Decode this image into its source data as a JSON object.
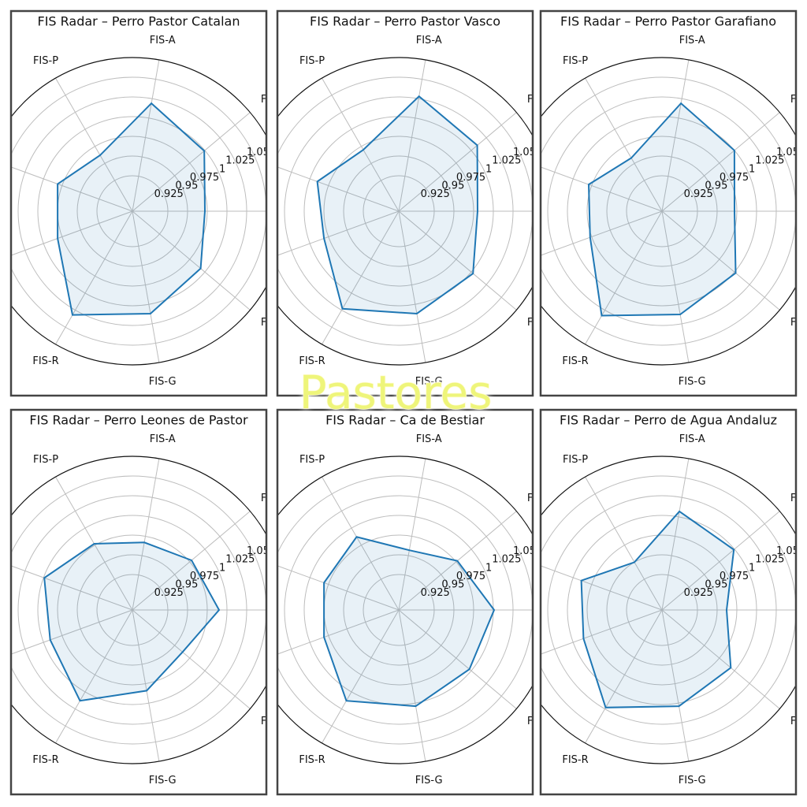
{
  "chart_data": [
    {
      "type": "radar",
      "title": "FIS Radar – Perro Pastor Catalan",
      "categories": [
        null,
        "FI",
        "FIS-A",
        "FIS-P",
        null,
        null,
        "FIS-R",
        "FIS-G",
        "FI"
      ],
      "values": [
        0.972,
        0.999,
        1.019,
        0.962,
        0.981,
        0.981,
        1.032,
        1.012,
        0.993
      ],
      "color": "#1f77b4",
      "rlim": [
        0.88,
        1.075
      ],
      "rticks": [
        0.925,
        0.95,
        0.975,
        1.0,
        1.025,
        1.05
      ],
      "grid": true
    },
    {
      "type": "radar",
      "title": "FIS Radar – Perro Pastor Vasco",
      "categories": [
        null,
        "FI",
        "FIS-A",
        "FIS-P",
        null,
        null,
        "FIS-R",
        "FIS-G",
        "FI"
      ],
      "values": [
        0.98,
        1.01,
        1.028,
        0.97,
        0.99,
        0.981,
        1.023,
        1.012,
        1.003
      ],
      "color": "#1f77b4",
      "rlim": [
        0.88,
        1.075
      ],
      "rticks": [
        0.925,
        0.95,
        0.975,
        1.0,
        1.025,
        1.05
      ],
      "grid": true
    },
    {
      "type": "radar",
      "title": "FIS Radar – Perro Pastor Garafiano",
      "categories": [
        null,
        "FI",
        "FIS-A",
        "FIS-P",
        null,
        null,
        "FIS-R",
        "FIS-G",
        "FI"
      ],
      "values": [
        0.972,
        1.0,
        1.019,
        0.958,
        0.979,
        0.977,
        1.033,
        1.013,
        1.002
      ],
      "color": "#1f77b4",
      "rlim": [
        0.88,
        1.075
      ],
      "rticks": [
        0.925,
        0.95,
        0.975,
        1.0,
        1.025,
        1.05
      ],
      "grid": true
    },
    {
      "type": "radar",
      "title": "FIS Radar – Perro Leones de Pastor",
      "categories": [
        null,
        "FI",
        "FIS-A",
        "FIS-P",
        null,
        null,
        "FIS-R",
        "FIS-G",
        "FI"
      ],
      "values": [
        0.99,
        0.978,
        0.967,
        0.977,
        0.999,
        0.991,
        1.013,
        0.984,
        0.963
      ],
      "color": "#1f77b4",
      "rlim": [
        0.88,
        1.075
      ],
      "rticks": [
        0.925,
        0.95,
        0.975,
        1.0,
        1.025,
        1.05
      ],
      "grid": true
    },
    {
      "type": "radar",
      "title": "FIS Radar – Ca de Bestiar",
      "categories": [
        null,
        "FI",
        "FIS-A",
        "FIS-P",
        null,
        null,
        "FIS-R",
        "FIS-G",
        "FI"
      ],
      "values": [
        1.001,
        0.977,
        0.957,
        0.987,
        0.981,
        0.981,
        1.013,
        1.004,
        0.997
      ],
      "color": "#1f77b4",
      "rlim": [
        0.88,
        1.075
      ],
      "rticks": [
        0.925,
        0.95,
        0.975,
        1.0,
        1.025,
        1.05
      ],
      "grid": true
    },
    {
      "type": "radar",
      "title": "FIS Radar – Perro de Agua Andaluz",
      "categories": [
        null,
        "FI",
        "FIS-A",
        "FIS-P",
        null,
        null,
        "FIS-R",
        "FIS-G",
        "FI"
      ],
      "values": [
        0.962,
        0.999,
        1.007,
        0.95,
        0.989,
        0.986,
        1.023,
        1.004,
        0.994
      ],
      "color": "#1f77b4",
      "rlim": [
        0.88,
        1.075
      ],
      "rticks": [
        0.925,
        0.95,
        0.975,
        1.0,
        1.025,
        1.05
      ],
      "grid": true
    }
  ],
  "overlay_text": "Pastores"
}
